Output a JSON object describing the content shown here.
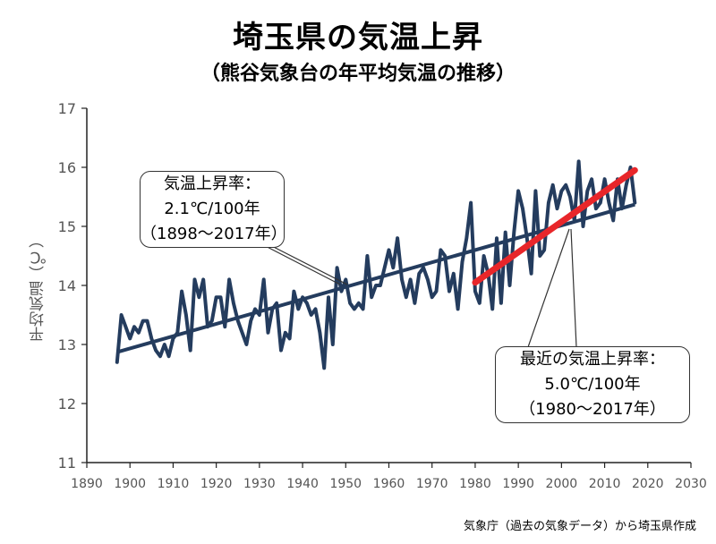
{
  "title": "埼玉県の気温上昇",
  "subtitle": "（熊谷気象台の年平均気温の推移）",
  "source": "気象庁（過去の気象データ）から埼玉県作成",
  "colors": {
    "series": "#243c5e",
    "recent_trend": "#e8262a",
    "axis": "#222222"
  },
  "annotations": {
    "overall": {
      "line1": "気温上昇率：",
      "line2": "2.1℃/100年",
      "line3": "（1898～2017年）"
    },
    "recent": {
      "line1": "最近の気温上昇率：",
      "line2": "5.0℃/100年",
      "line3": "（1980～2017年）"
    }
  },
  "chart_data": {
    "type": "line",
    "ylabel": "平均気温（℃）",
    "xlabel": "",
    "xlim": [
      1890,
      2030
    ],
    "ylim": [
      11,
      17
    ],
    "xticks": [
      1890,
      1900,
      1910,
      1920,
      1930,
      1940,
      1950,
      1960,
      1970,
      1980,
      1990,
      2000,
      2010,
      2020,
      2030
    ],
    "yticks": [
      11,
      12,
      13,
      14,
      15,
      16,
      17
    ],
    "grid": false,
    "series": [
      {
        "x": [
          1897,
          1898,
          1899,
          1900,
          1901,
          1902,
          1903,
          1904,
          1905,
          1906,
          1907,
          1908,
          1909,
          1910,
          1911,
          1912,
          1913,
          1914,
          1915,
          1916,
          1917,
          1918,
          1919,
          1920,
          1921,
          1922,
          1923,
          1924,
          1925,
          1926,
          1927,
          1928,
          1929,
          1930,
          1931,
          1932,
          1933,
          1934,
          1935,
          1936,
          1937,
          1938,
          1939,
          1940,
          1941,
          1942,
          1943,
          1944,
          1945,
          1946,
          1947,
          1948,
          1949,
          1950,
          1951,
          1952,
          1953,
          1954,
          1955,
          1956,
          1957,
          1958,
          1959,
          1960,
          1961,
          1962,
          1963,
          1964,
          1965,
          1966,
          1967,
          1968,
          1969,
          1970,
          1971,
          1972,
          1973,
          1974,
          1975,
          1976,
          1977,
          1978,
          1979,
          1980,
          1981,
          1982,
          1983,
          1984,
          1985,
          1986,
          1987,
          1988,
          1989,
          1990,
          1991,
          1992,
          1993,
          1994,
          1995,
          1996,
          1997,
          1998,
          1999,
          2000,
          2001,
          2002,
          2003,
          2004,
          2005,
          2006,
          2007,
          2008,
          2009,
          2010,
          2011,
          2012,
          2013,
          2014,
          2015,
          2016,
          2017
        ],
        "y": [
          12.7,
          13.5,
          13.3,
          13.1,
          13.3,
          13.2,
          13.4,
          13.4,
          13.1,
          12.9,
          12.8,
          13.0,
          12.8,
          13.1,
          13.2,
          13.9,
          13.5,
          12.9,
          14.1,
          13.8,
          14.1,
          13.3,
          13.4,
          13.8,
          13.8,
          13.3,
          14.1,
          13.7,
          13.4,
          13.2,
          13.0,
          13.4,
          13.6,
          13.5,
          14.1,
          13.2,
          13.6,
          13.7,
          12.9,
          13.2,
          13.1,
          13.9,
          13.6,
          13.8,
          13.7,
          13.5,
          13.6,
          13.2,
          12.6,
          13.8,
          13.0,
          14.3,
          13.9,
          14.1,
          13.7,
          13.6,
          13.7,
          13.6,
          14.5,
          13.8,
          14.0,
          14.0,
          14.3,
          14.6,
          14.3,
          14.8,
          14.1,
          13.8,
          14.1,
          13.7,
          14.2,
          14.3,
          14.1,
          13.8,
          13.9,
          14.6,
          14.5,
          13.9,
          14.2,
          13.6,
          14.4,
          14.8,
          15.4,
          13.9,
          13.7,
          14.5,
          14.2,
          13.6,
          14.8,
          13.7,
          14.9,
          14.0,
          14.9,
          15.6,
          15.3,
          14.8,
          14.2,
          15.6,
          14.5,
          14.6,
          15.4,
          15.7,
          15.3,
          15.6,
          15.7,
          15.5,
          15.1,
          16.1,
          15.0,
          15.6,
          15.8,
          15.3,
          15.4,
          15.8,
          15.4,
          15.1,
          15.8,
          15.3,
          15.7,
          16.0,
          15.4
        ]
      }
    ],
    "trend_lines": [
      {
        "x": [
          1897,
          2017
        ],
        "y": [
          12.87,
          15.37
        ]
      },
      {
        "x": [
          1980,
          2017
        ],
        "y": [
          14.05,
          15.95
        ]
      }
    ]
  }
}
